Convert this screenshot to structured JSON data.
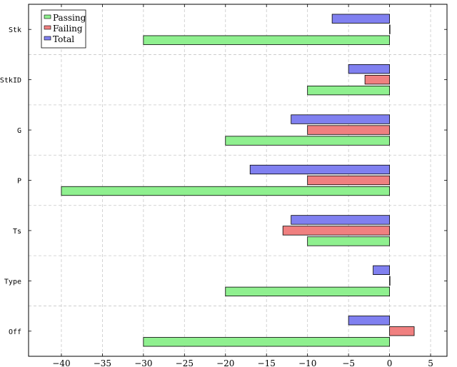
{
  "chart_data": {
    "type": "bar",
    "orientation": "horizontal",
    "categories": [
      "Stk",
      "StkID",
      "G",
      "P",
      "Ts",
      "Type",
      "Off"
    ],
    "series": [
      {
        "name": "Passing",
        "color": "#8ff08f",
        "values": [
          -30,
          -10,
          -20,
          -40,
          -10,
          -20,
          -30
        ]
      },
      {
        "name": "Failing",
        "color": "#f08080",
        "values": [
          0,
          -3,
          -10,
          -10,
          -13,
          0,
          3
        ]
      },
      {
        "name": "Total",
        "color": "#8080f0",
        "values": [
          -7,
          -5,
          -12,
          -17,
          -12,
          -2,
          -5
        ]
      }
    ],
    "xlim": [
      -44,
      7
    ],
    "xticks": [
      -40,
      -35,
      -30,
      -25,
      -20,
      -15,
      -10,
      -5,
      0,
      5
    ],
    "xtick_labels": [
      "−40",
      "−35",
      "−30",
      "−25",
      "−20",
      "−15",
      "−10",
      "−5",
      "0",
      "5"
    ],
    "grid": true,
    "legend_position": "top-left",
    "title": "",
    "xlabel": "",
    "ylabel": ""
  }
}
